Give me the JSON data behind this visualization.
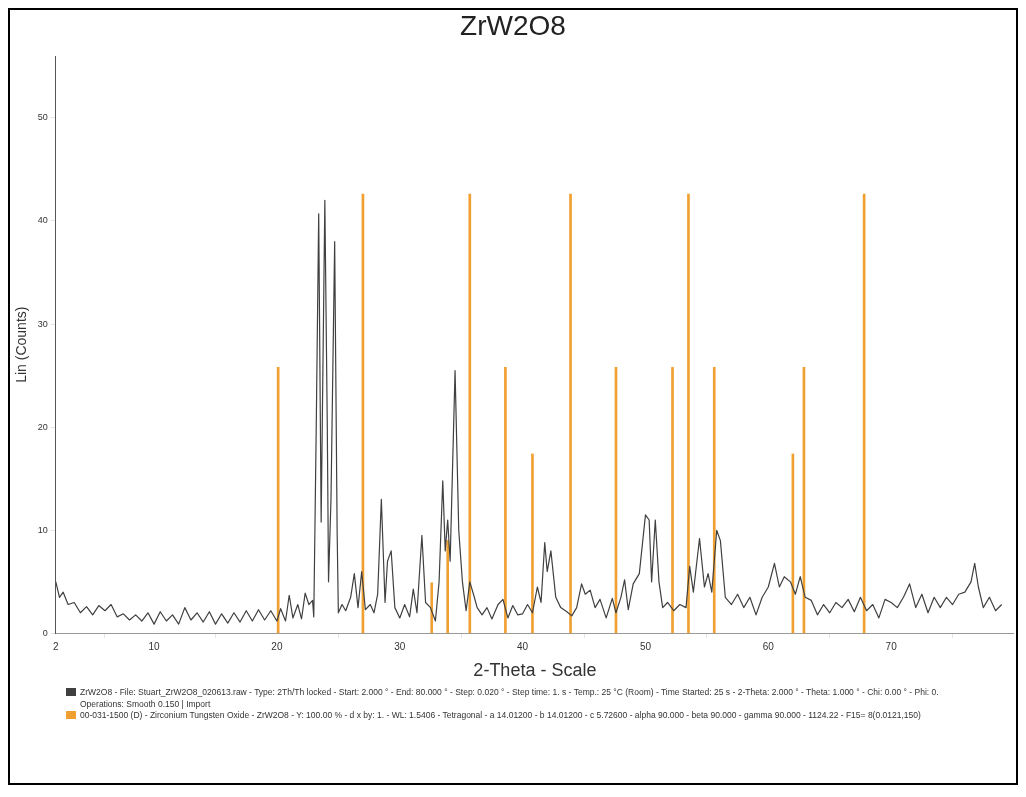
{
  "chart_data": {
    "type": "line",
    "title": "ZrW2O8",
    "xlabel": "2-Theta - Scale",
    "ylabel": "Lin (Counts)",
    "xlim": [
      2,
      80
    ],
    "xticks": [
      2,
      10,
      20,
      30,
      40,
      50,
      60,
      70
    ],
    "ylim": [
      0,
      56
    ],
    "yticks": [
      0,
      10,
      20,
      30,
      40,
      50
    ],
    "grid": false,
    "legend": "bottom",
    "marker": "none",
    "series": [
      {
        "name": "ZrW2O8 - File: Stuart_ZrW2O8_020613.raw - Type: 2Th/Th locked - Start: 2.000 ° - End: 80.000 ° - Step: 0.020 ° - Step time: 1. s - Temp.: 25 °C (Room) - Time Started: 25 s - 2-Theta: 2.000 ° - Theta: 1.000 ° - Chi: 0.00 ° - Phi: 0.",
        "color": "#404040",
        "x": [
          2,
          2.3,
          2.6,
          3,
          3.5,
          4,
          4.5,
          5,
          5.5,
          6,
          6.5,
          7,
          7.5,
          8,
          8.5,
          9,
          9.5,
          10,
          10.5,
          11,
          11.5,
          12,
          12.5,
          13,
          13.5,
          14,
          14.5,
          15,
          15.5,
          16,
          16.5,
          17,
          17.5,
          18,
          18.5,
          19,
          19.5,
          20,
          20.3,
          20.7,
          21,
          21.3,
          21.7,
          22,
          22.3,
          22.6,
          22.9,
          23.0,
          23.2,
          23.4,
          23.6,
          23.9,
          24.1,
          24.2,
          24.4,
          24.7,
          24.9,
          25.0,
          25.3,
          25.6,
          26,
          26.3,
          26.6,
          26.9,
          27.2,
          27.6,
          27.9,
          28.2,
          28.5,
          28.8,
          29.0,
          29.3,
          29.6,
          30,
          30.4,
          30.8,
          31.1,
          31.4,
          31.8,
          32.1,
          32.5,
          32.9,
          33.2,
          33.5,
          33.7,
          33.9,
          34.1,
          34.5,
          34.8,
          35.1,
          35.4,
          35.7,
          36.0,
          36.3,
          36.7,
          37.1,
          37.5,
          38,
          38.4,
          38.8,
          39.2,
          39.6,
          40,
          40.4,
          40.8,
          41.2,
          41.5,
          41.8,
          42.0,
          42.3,
          42.7,
          43.1,
          43.6,
          44,
          44.4,
          44.8,
          45.1,
          45.5,
          45.9,
          46.3,
          46.8,
          47.3,
          47.6,
          48,
          48.3,
          48.6,
          49,
          49.5,
          50.0,
          50.3,
          50.5,
          50.8,
          51.1,
          51.4,
          51.8,
          52.3,
          52.8,
          53.3,
          53.6,
          53.9,
          54.4,
          54.8,
          55.1,
          55.4,
          55.8,
          56.1,
          56.5,
          57,
          57.5,
          58,
          58.5,
          59,
          59.5,
          60,
          60.5,
          60.9,
          61.3,
          61.8,
          62.2,
          62.6,
          63,
          63.5,
          64,
          64.5,
          65,
          65.5,
          66,
          66.5,
          67,
          67.5,
          68,
          68.5,
          69,
          69.5,
          70,
          70.5,
          71,
          71.5,
          72,
          72.5,
          73,
          73.5,
          74,
          74.5,
          75,
          75.5,
          76,
          76.5,
          76.8,
          77.1,
          77.5,
          78,
          78.5,
          79
        ],
        "values": [
          5,
          3.5,
          4,
          2.8,
          3,
          2,
          2.6,
          1.8,
          2.7,
          2.2,
          2.8,
          1.6,
          1.9,
          1.3,
          1.8,
          1.2,
          2,
          0.9,
          2.1,
          1.2,
          1.8,
          0.9,
          2.5,
          1.3,
          2,
          1.1,
          2.1,
          0.9,
          1.9,
          1,
          2,
          1.1,
          2.2,
          1.2,
          2.3,
          1.3,
          2.2,
          1.2,
          2.4,
          1.2,
          3.7,
          1.5,
          2.8,
          1.4,
          3.9,
          2.8,
          3.2,
          1.6,
          20,
          40.7,
          10.8,
          42,
          20,
          5,
          13,
          38,
          10,
          2,
          2.8,
          2.2,
          3.5,
          5.8,
          2.5,
          6,
          2.3,
          2.8,
          2,
          3.8,
          13,
          3,
          7,
          8,
          2.5,
          1.5,
          2.8,
          1.6,
          4.3,
          2,
          9.5,
          3,
          2.5,
          1.2,
          5,
          14.8,
          8,
          11,
          7,
          25.5,
          10,
          5,
          2.2,
          5,
          3.8,
          2.5,
          1.8,
          2.5,
          1.4,
          2.8,
          3.3,
          1.5,
          2.7,
          1.8,
          1.9,
          2.8,
          2,
          4.5,
          3,
          8.8,
          6,
          8,
          3.5,
          2.5,
          2.1,
          1.7,
          2.5,
          4.8,
          3.8,
          4.2,
          2.5,
          3.3,
          1.5,
          3.4,
          2,
          3.5,
          5.2,
          2.3,
          4.8,
          5.8,
          11.5,
          11,
          5,
          11,
          5,
          2.5,
          3,
          2.2,
          2.8,
          2.5,
          6.5,
          4,
          9.2,
          4.5,
          5.8,
          4,
          10,
          9,
          3.5,
          2.8,
          3.8,
          2.5,
          3.5,
          1.8,
          3.5,
          4.5,
          6.8,
          4.5,
          5.5,
          5,
          3.8,
          5.5,
          3.5,
          3.2,
          1.8,
          2.8,
          2,
          3,
          2.5,
          3.3,
          2.1,
          3.5,
          2.2,
          2.8,
          1.5,
          3.3,
          3,
          2.5,
          3.5,
          4.8,
          2.5,
          3.8,
          2,
          3.5,
          2.5,
          3.5,
          2.8,
          3.8,
          4,
          5,
          6.8,
          4.5,
          2.5,
          3.5,
          2.2,
          2.8
        ]
      },
      {
        "name": "00-031-1500 (D) - Zirconium Tungsten Oxide - ZrW2O8 - Y: 100.00 % - d x by: 1. - WL: 1.5406 - Tetragonal - a 14.01200 - b 14.01200 - c 5.72600 - alpha 90.000 - beta 90.000 - gamma 90.000 - 1124.22 - F15= 8(0.0121,150)",
        "type": "bar",
        "color": "#f0a030",
        "x": [
          20.1,
          27.0,
          32.6,
          33.9,
          35.7,
          38.6,
          40.8,
          43.9,
          47.6,
          52.2,
          53.5,
          55.6,
          62.0,
          62.9,
          67.8
        ],
        "values": [
          25.8,
          42.6,
          4.9,
          9,
          42.6,
          25.8,
          17.4,
          42.6,
          25.8,
          25.8,
          42.6,
          25.8,
          17.4,
          25.8,
          42.6
        ]
      }
    ],
    "annotations": [
      "Operations: Smooth 0.150 | Import"
    ]
  }
}
